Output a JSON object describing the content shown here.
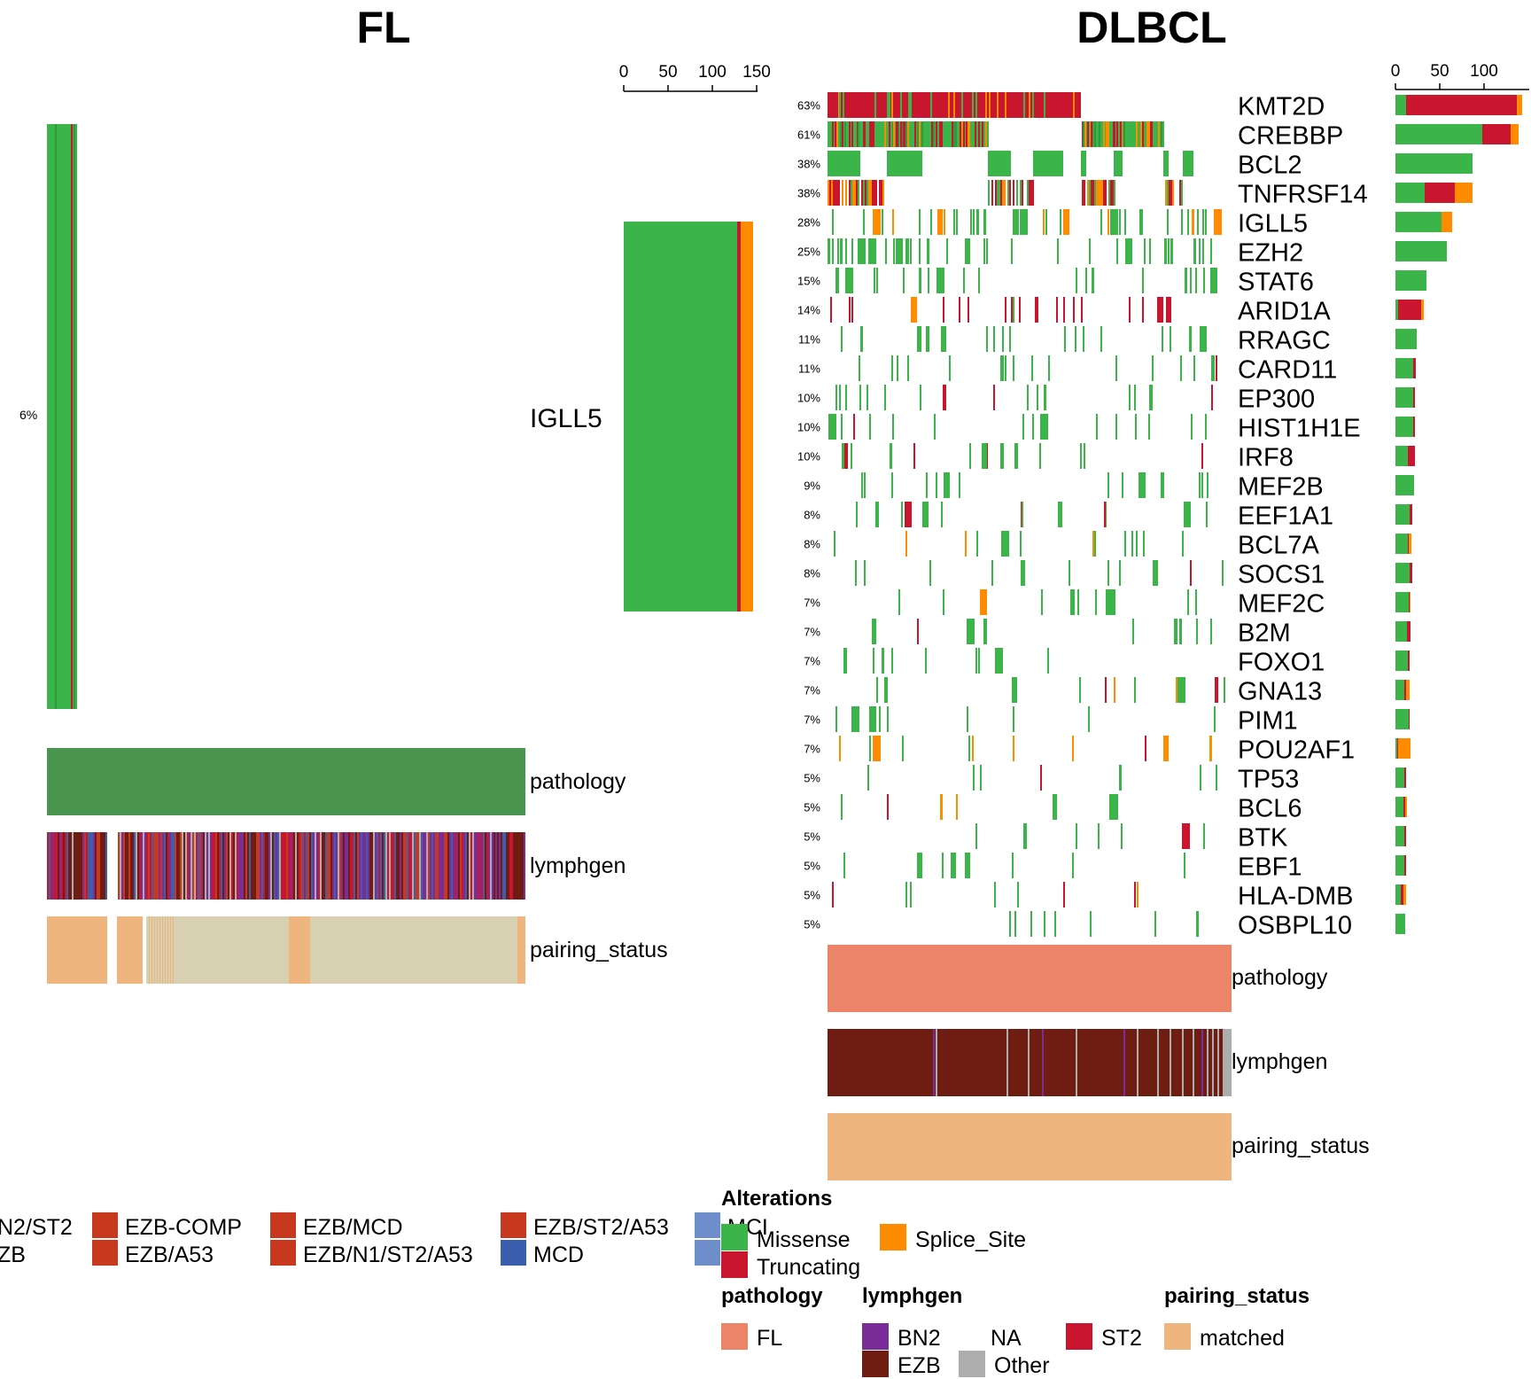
{
  "colors": {
    "missense": "#3BB54A",
    "truncating": "#C9152E",
    "splice_site": "#FF8C00",
    "pathology_fl_dark": "#4A9550",
    "pathology_fl": "#EB8469",
    "pairing_matched": "#EFB57E",
    "pairing_unmatched": "#D7D1B2",
    "lymphgen_bn2": "#7A2D99",
    "lymphgen_ezb": "#6F1D12",
    "lymphgen_other": "#ADADAD",
    "lymphgen_st2": "#C9152E",
    "lymphgen_mcd": "#3C5EAE",
    "lymphgen_mcd_light": "#6E8ECB",
    "lymphgen_ezb_comp": "#C7381F"
  },
  "left_panel": {
    "title": "FL",
    "gene_label": "IGLL5",
    "percent": "6%",
    "annotation_labels": [
      "pathology",
      "lymphgen",
      "pairing_status"
    ],
    "bar_ticks": [
      "0",
      "50",
      "100",
      "150"
    ]
  },
  "right_panel": {
    "title": "DLBCL",
    "annotation_labels": [
      "pathology",
      "lymphgen",
      "pairing_status"
    ],
    "bar_ticks": [
      "0",
      "50",
      "100"
    ]
  },
  "chart_data": [
    {
      "type": "heatmap",
      "title": "FL",
      "genes": [
        "IGLL5"
      ],
      "percents": [
        "6%"
      ],
      "axis_ticks": [
        0,
        50,
        100,
        150
      ],
      "counts": [
        {
          "gene": "IGLL5",
          "missense": 128,
          "truncating": 4,
          "splice_site": 14
        }
      ]
    },
    {
      "type": "heatmap",
      "title": "DLBCL",
      "axis_ticks": [
        0,
        50,
        100
      ],
      "genes": [
        "KMT2D",
        "CREBBP",
        "BCL2",
        "TNFRSF14",
        "IGLL5",
        "EZH2",
        "STAT6",
        "ARID1A",
        "RRAGC",
        "CARD11",
        "EP300",
        "HIST1H1E",
        "IRF8",
        "MEF2B",
        "EEF1A1",
        "BCL7A",
        "SOCS1",
        "MEF2C",
        "B2M",
        "FOXO1",
        "GNA13",
        "PIM1",
        "POU2AF1",
        "TP53",
        "BCL6",
        "BTK",
        "EBF1",
        "HLA-DMB",
        "OSBPL10"
      ],
      "percents": [
        "63%",
        "61%",
        "38%",
        "38%",
        "28%",
        "25%",
        "15%",
        "14%",
        "11%",
        "11%",
        "10%",
        "10%",
        "10%",
        "9%",
        "8%",
        "8%",
        "8%",
        "7%",
        "7%",
        "7%",
        "7%",
        "7%",
        "7%",
        "5%",
        "5%",
        "5%",
        "5%",
        "5%",
        "5%"
      ],
      "counts": [
        {
          "missense": 12,
          "truncating": 125,
          "splice_site": 6
        },
        {
          "missense": 98,
          "truncating": 32,
          "splice_site": 9
        },
        {
          "missense": 87,
          "truncating": 0,
          "splice_site": 0
        },
        {
          "missense": 33,
          "truncating": 34,
          "splice_site": 20
        },
        {
          "missense": 52,
          "truncating": 0,
          "splice_site": 12
        },
        {
          "missense": 58,
          "truncating": 0,
          "splice_site": 0
        },
        {
          "missense": 35,
          "truncating": 0,
          "splice_site": 0
        },
        {
          "missense": 3,
          "truncating": 26,
          "splice_site": 3
        },
        {
          "missense": 24,
          "truncating": 0,
          "splice_site": 0
        },
        {
          "missense": 20,
          "truncating": 3,
          "splice_site": 0
        },
        {
          "missense": 20,
          "truncating": 2,
          "splice_site": 0
        },
        {
          "missense": 20,
          "truncating": 2,
          "splice_site": 0
        },
        {
          "missense": 14,
          "truncating": 8,
          "splice_site": 0
        },
        {
          "missense": 21,
          "truncating": 0,
          "splice_site": 0
        },
        {
          "missense": 16,
          "truncating": 3,
          "splice_site": 0
        },
        {
          "missense": 14,
          "truncating": 1,
          "splice_site": 3
        },
        {
          "missense": 16,
          "truncating": 3,
          "splice_site": 0
        },
        {
          "missense": 15,
          "truncating": 1,
          "splice_site": 1
        },
        {
          "missense": 13,
          "truncating": 4,
          "splice_site": 0
        },
        {
          "missense": 14,
          "truncating": 2,
          "splice_site": 0
        },
        {
          "missense": 10,
          "truncating": 2,
          "splice_site": 4
        },
        {
          "missense": 15,
          "truncating": 1,
          "splice_site": 0
        },
        {
          "missense": 2,
          "truncating": 1,
          "splice_site": 14
        },
        {
          "missense": 10,
          "truncating": 2,
          "splice_site": 0
        },
        {
          "missense": 9,
          "truncating": 2,
          "splice_site": 2
        },
        {
          "missense": 10,
          "truncating": 2,
          "splice_site": 0
        },
        {
          "missense": 10,
          "truncating": 2,
          "splice_site": 0
        },
        {
          "missense": 6,
          "truncating": 3,
          "splice_site": 3
        },
        {
          "missense": 11,
          "truncating": 0,
          "splice_site": 0
        }
      ]
    }
  ],
  "legend": {
    "alterations_title": "Alterations",
    "alterations": [
      {
        "label": "Missense",
        "color_key": "missense"
      },
      {
        "label": "Truncating",
        "color_key": "truncating"
      },
      {
        "label": "Splice_Site",
        "color_key": "splice_site"
      }
    ],
    "pathology_title": "pathology",
    "pathology": [
      {
        "label": "FL",
        "color_key": "pathology_fl"
      }
    ],
    "lymphgen_title": "lymphgen",
    "lymphgen": [
      {
        "label": "BN2",
        "color_key": "lymphgen_bn2"
      },
      {
        "label": "EZB",
        "color_key": "lymphgen_ezb"
      },
      {
        "label": "NA",
        "color_key": ""
      },
      {
        "label": "Other",
        "color_key": "lymphgen_other"
      },
      {
        "label": "ST2",
        "color_key": "lymphgen_st2"
      }
    ],
    "pairing_title": "pairing_status",
    "pairing": [
      {
        "label": "matched",
        "color_key": "pairing_matched"
      }
    ],
    "left_legend_items": [
      {
        "label": "N2/ST2",
        "color_key": ""
      },
      {
        "label": "ZB",
        "color_key": ""
      },
      {
        "label": "EZB-COMP",
        "color_key": "lymphgen_ezb_comp"
      },
      {
        "label": "EZB/A53",
        "color_key": "lymphgen_ezb_comp"
      },
      {
        "label": "EZB/MCD",
        "color_key": "lymphgen_ezb_comp"
      },
      {
        "label": "EZB/N1/ST2/A53",
        "color_key": "lymphgen_ezb_comp"
      },
      {
        "label": "EZB/ST2/A53",
        "color_key": "lymphgen_ezb_comp"
      },
      {
        "label": "MCD",
        "color_key": "lymphgen_mcd"
      },
      {
        "label": "MCI",
        "color_key": "lymphgen_mcd_light"
      }
    ]
  }
}
